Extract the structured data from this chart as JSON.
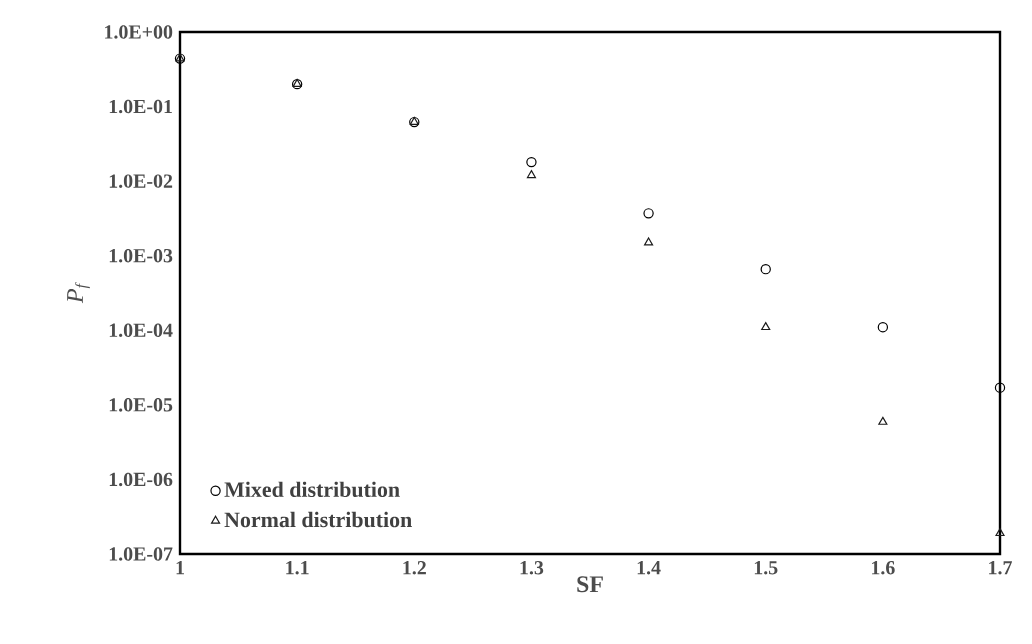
{
  "chart_data": {
    "type": "scatter",
    "xlabel": "SF",
    "ylabel": "P$_{f}$",
    "log": "y",
    "x": [
      1,
      1.1,
      1.2,
      1.3,
      1.4,
      1.5,
      1.6,
      1.7
    ],
    "series": [
      {
        "name": "Mixed distribution",
        "color": "#000000",
        "marker": "circle",
        "values": [
          0.44,
          0.2,
          0.062,
          0.018,
          0.0037,
          0.00066,
          0.00011,
          1.7e-05
        ]
      },
      {
        "name": "Normal distribution",
        "color": "#1a1a1a",
        "marker": "triangle",
        "values": [
          0.44,
          0.2,
          0.062,
          0.012,
          0.0015,
          0.00011,
          5.9e-06,
          1.9e-07
        ]
      }
    ],
    "xlim": [
      1,
      1.7
    ],
    "xticks": [
      1,
      1.1,
      1.2,
      1.3,
      1.4,
      1.5,
      1.6,
      1.7
    ],
    "ylim": [
      1e-07,
      1
    ],
    "yticks": [
      {
        "value": 1e-07,
        "label": "1.0E-07"
      },
      {
        "value": 1e-06,
        "label": "1.0E-06"
      },
      {
        "value": 1e-05,
        "label": "1.0E-05"
      },
      {
        "value": 0.0001,
        "label": "1.0E-04"
      },
      {
        "value": 0.001,
        "label": "1.0E-03"
      },
      {
        "value": 0.01,
        "label": "1.0E-02"
      },
      {
        "value": 0.1,
        "label": "1.0E-01"
      },
      {
        "value": 1,
        "label": "1.0E+00"
      }
    ],
    "legend": "bottom left"
  }
}
